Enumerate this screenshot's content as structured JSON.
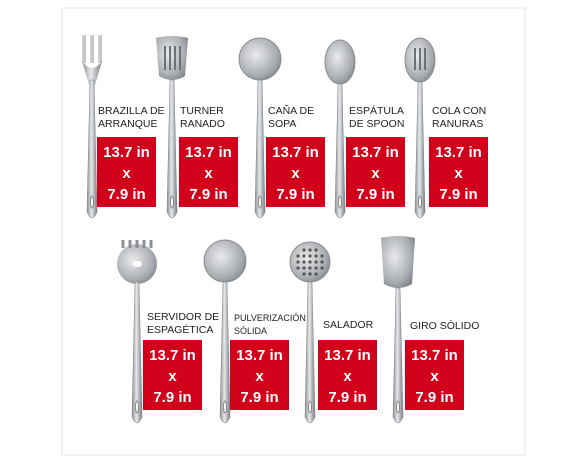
{
  "items": [
    {
      "label": [
        "BRAZILLA DE",
        "ARRANQUE"
      ],
      "size": [
        "13.7 in",
        "x",
        "7.9 in"
      ]
    },
    {
      "label": [
        "TURNER",
        "RANADO"
      ],
      "size": [
        "13.7 in",
        "x",
        "7.9 in"
      ]
    },
    {
      "label": [
        "CAÑA DE",
        "SOPA"
      ],
      "size": [
        "13.7 in",
        "x",
        "7.9 in"
      ]
    },
    {
      "label": [
        "ESPÁTULA",
        "DE SPOON"
      ],
      "size": [
        "13.7 in",
        "x",
        "7.9 in"
      ]
    },
    {
      "label": [
        "COLA CON",
        "RANURAS"
      ],
      "size": [
        "13.7 in",
        "x",
        "7.9 in"
      ]
    },
    {
      "label": [
        "SERVIDOR DE",
        "ESPAGÉTICA"
      ],
      "size": [
        "13.7 in",
        "x",
        "7.9 in"
      ]
    },
    {
      "label": [
        "PULVERIZACIÓN",
        "SÓLIDA"
      ],
      "size": [
        "13.7 in",
        "x",
        "7.9 in"
      ]
    },
    {
      "label": [
        "SALADOR"
      ],
      "size": [
        "13.7 in",
        "x",
        "7.9 in"
      ]
    },
    {
      "label": [
        "GIRO SÓLIDO"
      ],
      "size": [
        "13.7 in",
        "x",
        "7.9 in"
      ]
    }
  ]
}
